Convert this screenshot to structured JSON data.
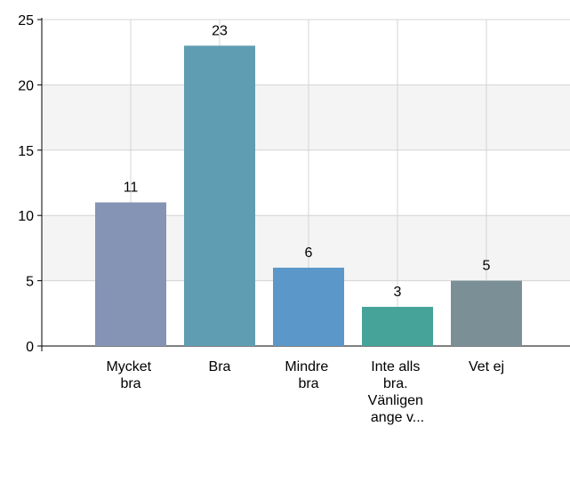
{
  "chart_data": {
    "type": "bar",
    "categories": [
      "Mycket bra",
      "Bra",
      "Mindre bra",
      "Inte alls bra. Vänligen ange v...",
      "Vet ej"
    ],
    "values": [
      11,
      23,
      6,
      3,
      5
    ],
    "colors": [
      "#8594b5",
      "#5f9db3",
      "#5b97c9",
      "#45a39a",
      "#7a9096"
    ],
    "ylim": [
      0,
      25
    ],
    "yticks": [
      0,
      5,
      10,
      15,
      20,
      25
    ],
    "grid": true
  }
}
